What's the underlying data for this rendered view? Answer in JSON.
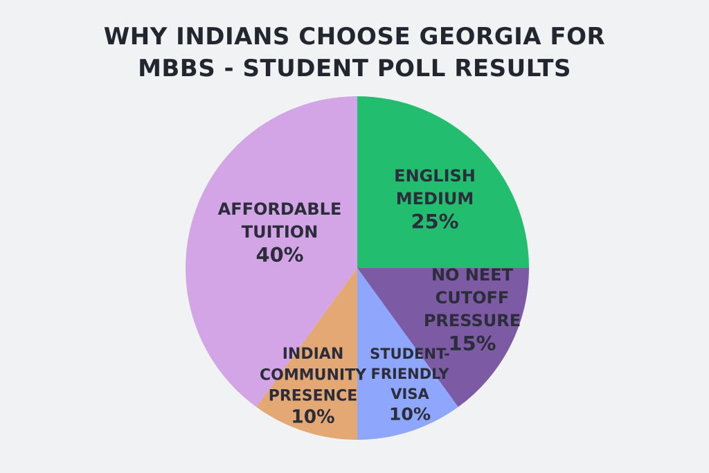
{
  "title_lines": [
    "WHY INDIANS CHOOSE GEORGIA FOR",
    "MBBS - STUDENT POLL RESULTS"
  ],
  "chart_data": {
    "type": "pie",
    "title": "WHY INDIANS CHOOSE GEORGIA FOR MBBS - STUDENT POLL RESULTS",
    "slices": [
      {
        "label": [
          "ENGLISH",
          "MEDIUM"
        ],
        "value": 25,
        "value_label": "25%",
        "color": "#22bd6f"
      },
      {
        "label": [
          "NO NEET",
          "CUTOFF",
          "PRESSURE"
        ],
        "value": 15,
        "value_label": "15%",
        "color": "#7d5aa4"
      },
      {
        "label": [
          "STUDENT-",
          "FRIENDLY",
          "VISA"
        ],
        "value": 10,
        "value_label": "10%",
        "color": "#8ea6fb"
      },
      {
        "label": [
          "INDIAN",
          "COMMUNITY",
          "PRESENCE"
        ],
        "value": 10,
        "value_label": "10%",
        "color": "#e4a874"
      },
      {
        "label": [
          "AFFORDABLE",
          "TUITION"
        ],
        "value": 40,
        "value_label": "40%",
        "color": "#d4a5e6"
      }
    ]
  }
}
